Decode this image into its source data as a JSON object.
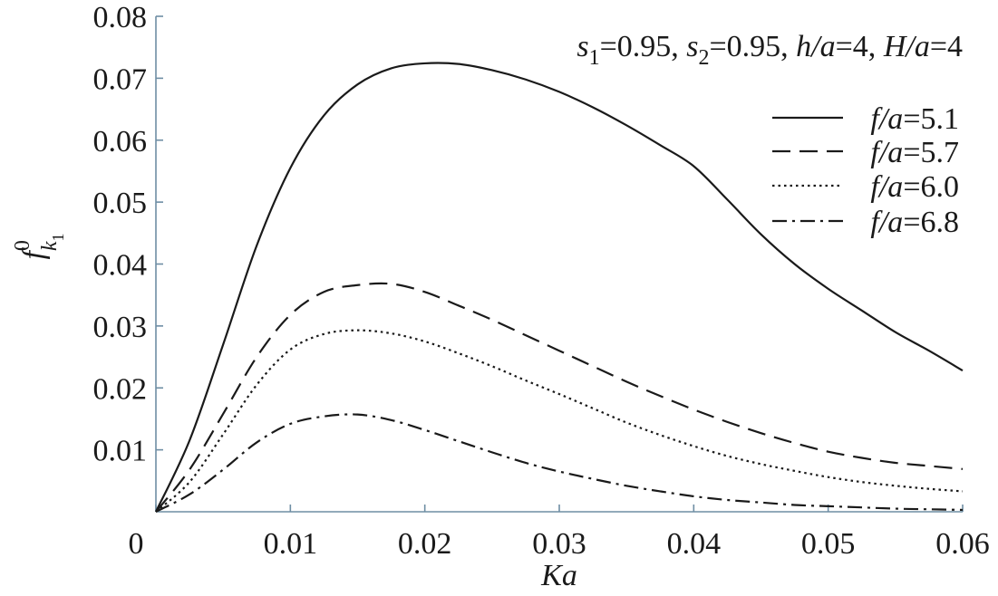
{
  "chart_data": {
    "type": "line",
    "title": "s1=0.95, s2=0.95, h/a=4, H/a=4",
    "title_parts": {
      "s1_var": "s",
      "s1_sub": "1",
      "s1_val": "=0.95, ",
      "s2_var": "s",
      "s2_sub": "2",
      "s2_val": "=0.95, ",
      "h_var": "h/a",
      "h_val": "=4, ",
      "H_var": "H/a",
      "H_val": "=4"
    },
    "xlabel": "Ka",
    "ylabel": {
      "base": "f",
      "sup": "0",
      "sub": "k",
      "subsub": "1"
    },
    "xlim": [
      0,
      0.06
    ],
    "ylim": [
      0,
      0.08
    ],
    "x_ticks": [
      0,
      0.01,
      0.02,
      0.03,
      0.04,
      0.05,
      0.06
    ],
    "x_tick_labels": [
      "0",
      "0.01",
      "0.02",
      "0.03",
      "0.04",
      "0.05",
      "0.06"
    ],
    "y_ticks": [
      0.01,
      0.02,
      0.03,
      0.04,
      0.05,
      0.06,
      0.07,
      0.08
    ],
    "y_tick_labels": [
      "0.01",
      "0.02",
      "0.03",
      "0.04",
      "0.05",
      "0.06",
      "0.07",
      "0.08"
    ],
    "grid": false,
    "legend_position": "top-right",
    "x": [
      0,
      0.0025,
      0.005,
      0.0075,
      0.01,
      0.0125,
      0.015,
      0.0175,
      0.02,
      0.0225,
      0.025,
      0.0275,
      0.03,
      0.0325,
      0.035,
      0.0375,
      0.04,
      0.0425,
      0.045,
      0.0475,
      0.05,
      0.0525,
      0.055,
      0.0575,
      0.06
    ],
    "series": [
      {
        "name": "f/a=5.1",
        "legend_var": "f/a",
        "legend_val": "=5.1",
        "style": "solid",
        "values": [
          0,
          0.0115,
          0.027,
          0.043,
          0.0555,
          0.064,
          0.069,
          0.0716,
          0.0724,
          0.0723,
          0.0713,
          0.0698,
          0.0678,
          0.0653,
          0.0624,
          0.0592,
          0.0558,
          0.0504,
          0.0448,
          0.04,
          0.036,
          0.0325,
          0.029,
          0.026,
          0.0228
        ]
      },
      {
        "name": "f/a=5.7",
        "legend_var": "f/a",
        "legend_val": "=5.7",
        "style": "dashed",
        "values": [
          0,
          0.0068,
          0.0158,
          0.025,
          0.0318,
          0.0355,
          0.0366,
          0.0368,
          0.0355,
          0.0333,
          0.031,
          0.0285,
          0.026,
          0.0235,
          0.021,
          0.0187,
          0.0165,
          0.0145,
          0.0127,
          0.0111,
          0.0097,
          0.0087,
          0.0079,
          0.0074,
          0.0069
        ]
      },
      {
        "name": "f/a=6.0",
        "legend_var": "f/a",
        "legend_val": "=6.0",
        "style": "dotted",
        "values": [
          0,
          0.0048,
          0.0125,
          0.0205,
          0.0262,
          0.0287,
          0.0293,
          0.0288,
          0.0275,
          0.0256,
          0.0235,
          0.0212,
          0.019,
          0.0167,
          0.0144,
          0.0124,
          0.0106,
          0.009,
          0.0077,
          0.0066,
          0.0056,
          0.0048,
          0.0042,
          0.0037,
          0.0033
        ]
      },
      {
        "name": "f/a=6.8",
        "legend_var": "f/a",
        "legend_val": "=6.8",
        "style": "dashdot",
        "values": [
          0,
          0.0028,
          0.0068,
          0.0112,
          0.0142,
          0.0154,
          0.0157,
          0.0148,
          0.0132,
          0.0114,
          0.0096,
          0.0079,
          0.0065,
          0.0053,
          0.0042,
          0.0033,
          0.0025,
          0.0019,
          0.0015,
          0.0011,
          0.0009,
          0.0007,
          0.0005,
          0.0004,
          0.0003
        ]
      }
    ]
  }
}
